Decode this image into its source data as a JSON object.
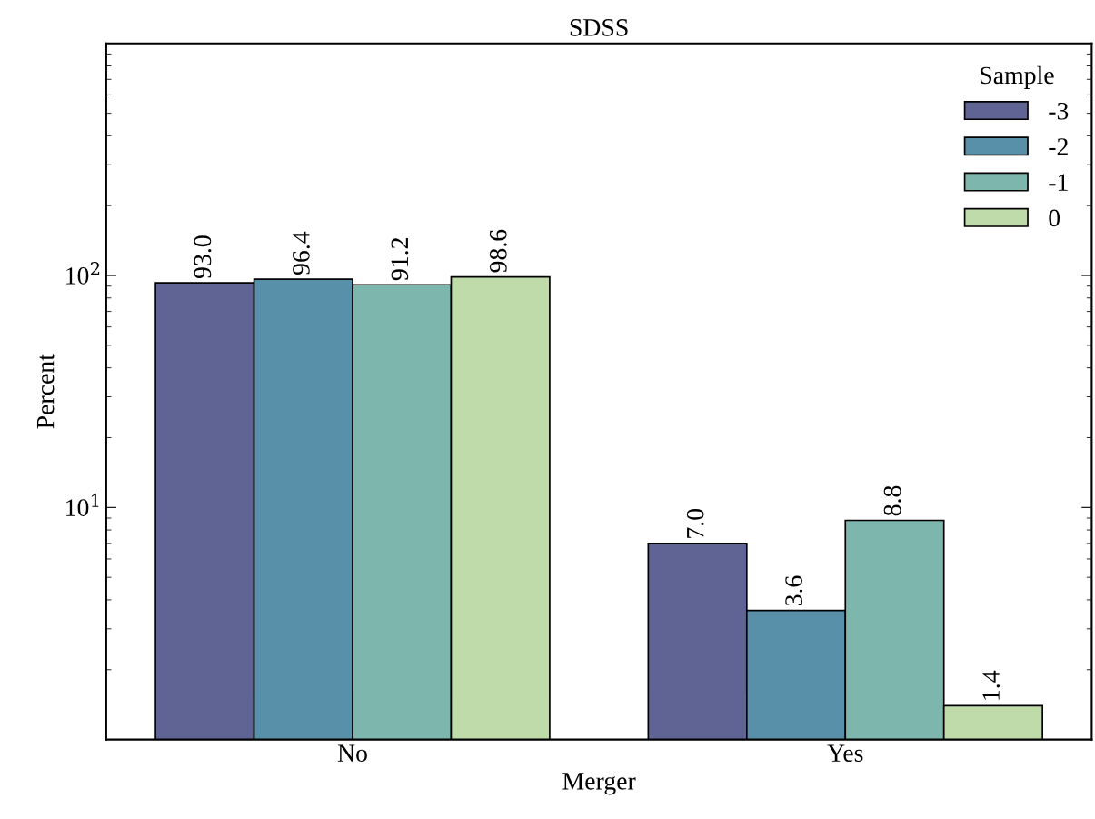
{
  "chart_data": {
    "type": "bar",
    "title": "SDSS",
    "xlabel": "Merger",
    "ylabel": "Percent",
    "legend_title": "Sample",
    "categories": [
      "No",
      "Yes"
    ],
    "series": [
      {
        "name": "-3",
        "color": "#5f6494",
        "values": [
          93.0,
          7.0
        ],
        "value_labels": [
          "93.0",
          "7.0"
        ]
      },
      {
        "name": "-2",
        "color": "#5790a8",
        "values": [
          96.4,
          3.6
        ],
        "value_labels": [
          "96.4",
          "3.6"
        ]
      },
      {
        "name": "-1",
        "color": "#7db6ad",
        "values": [
          91.2,
          8.8
        ],
        "value_labels": [
          "91.2",
          "8.8"
        ]
      },
      {
        "name": "0",
        "color": "#bedba9",
        "values": [
          98.6,
          1.4
        ],
        "value_labels": [
          "98.6",
          "1.4"
        ]
      }
    ],
    "log": "y",
    "ylim": [
      1,
      1000
    ],
    "yticks": [
      {
        "value": 10,
        "label": "10$^{1}$"
      },
      {
        "value": 100,
        "label": "10$^{2}$"
      }
    ],
    "legend": "top right",
    "grid": false
  }
}
